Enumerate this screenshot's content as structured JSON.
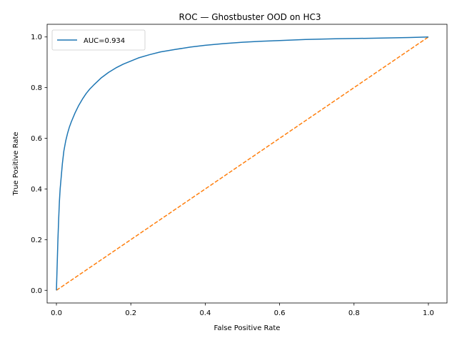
{
  "chart_data": {
    "type": "line",
    "title": "ROC — Ghostbuster OOD on HC3",
    "xlabel": "False Positive Rate",
    "ylabel": "True Positive Rate",
    "xlim": [
      -0.025,
      1.05
    ],
    "ylim": [
      -0.05,
      1.05
    ],
    "xticks": [
      0.0,
      0.2,
      0.4,
      0.6,
      0.8,
      1.0
    ],
    "xtick_labels": [
      "0.0",
      "0.2",
      "0.4",
      "0.6",
      "0.8",
      "1.0"
    ],
    "yticks": [
      0.0,
      0.2,
      0.4,
      0.6,
      0.8,
      1.0
    ],
    "ytick_labels": [
      "0.0",
      "0.2",
      "0.4",
      "0.6",
      "0.8",
      "1.0"
    ],
    "grid": false,
    "legend_position": "upper-left",
    "series": [
      {
        "name": "AUC=0.934",
        "color": "#1f77b4",
        "line_style": "solid",
        "x": [
          0.0,
          0.002,
          0.004,
          0.006,
          0.008,
          0.01,
          0.013,
          0.016,
          0.02,
          0.025,
          0.03,
          0.035,
          0.04,
          0.05,
          0.06,
          0.07,
          0.08,
          0.09,
          0.1,
          0.12,
          0.14,
          0.16,
          0.18,
          0.2,
          0.22,
          0.25,
          0.28,
          0.32,
          0.36,
          0.4,
          0.45,
          0.5,
          0.55,
          0.6,
          0.67,
          0.75,
          0.85,
          0.95,
          1.0
        ],
        "y": [
          0.0,
          0.1,
          0.2,
          0.28,
          0.35,
          0.4,
          0.45,
          0.5,
          0.55,
          0.59,
          0.62,
          0.645,
          0.665,
          0.7,
          0.73,
          0.755,
          0.777,
          0.795,
          0.81,
          0.838,
          0.86,
          0.878,
          0.893,
          0.905,
          0.917,
          0.93,
          0.941,
          0.951,
          0.96,
          0.967,
          0.974,
          0.979,
          0.983,
          0.986,
          0.99,
          0.993,
          0.995,
          0.998,
          1.0
        ]
      },
      {
        "name": "",
        "color": "#ff7f0e",
        "line_style": "dashed",
        "x": [
          0.0,
          1.0
        ],
        "y": [
          0.0,
          1.0
        ]
      }
    ]
  }
}
